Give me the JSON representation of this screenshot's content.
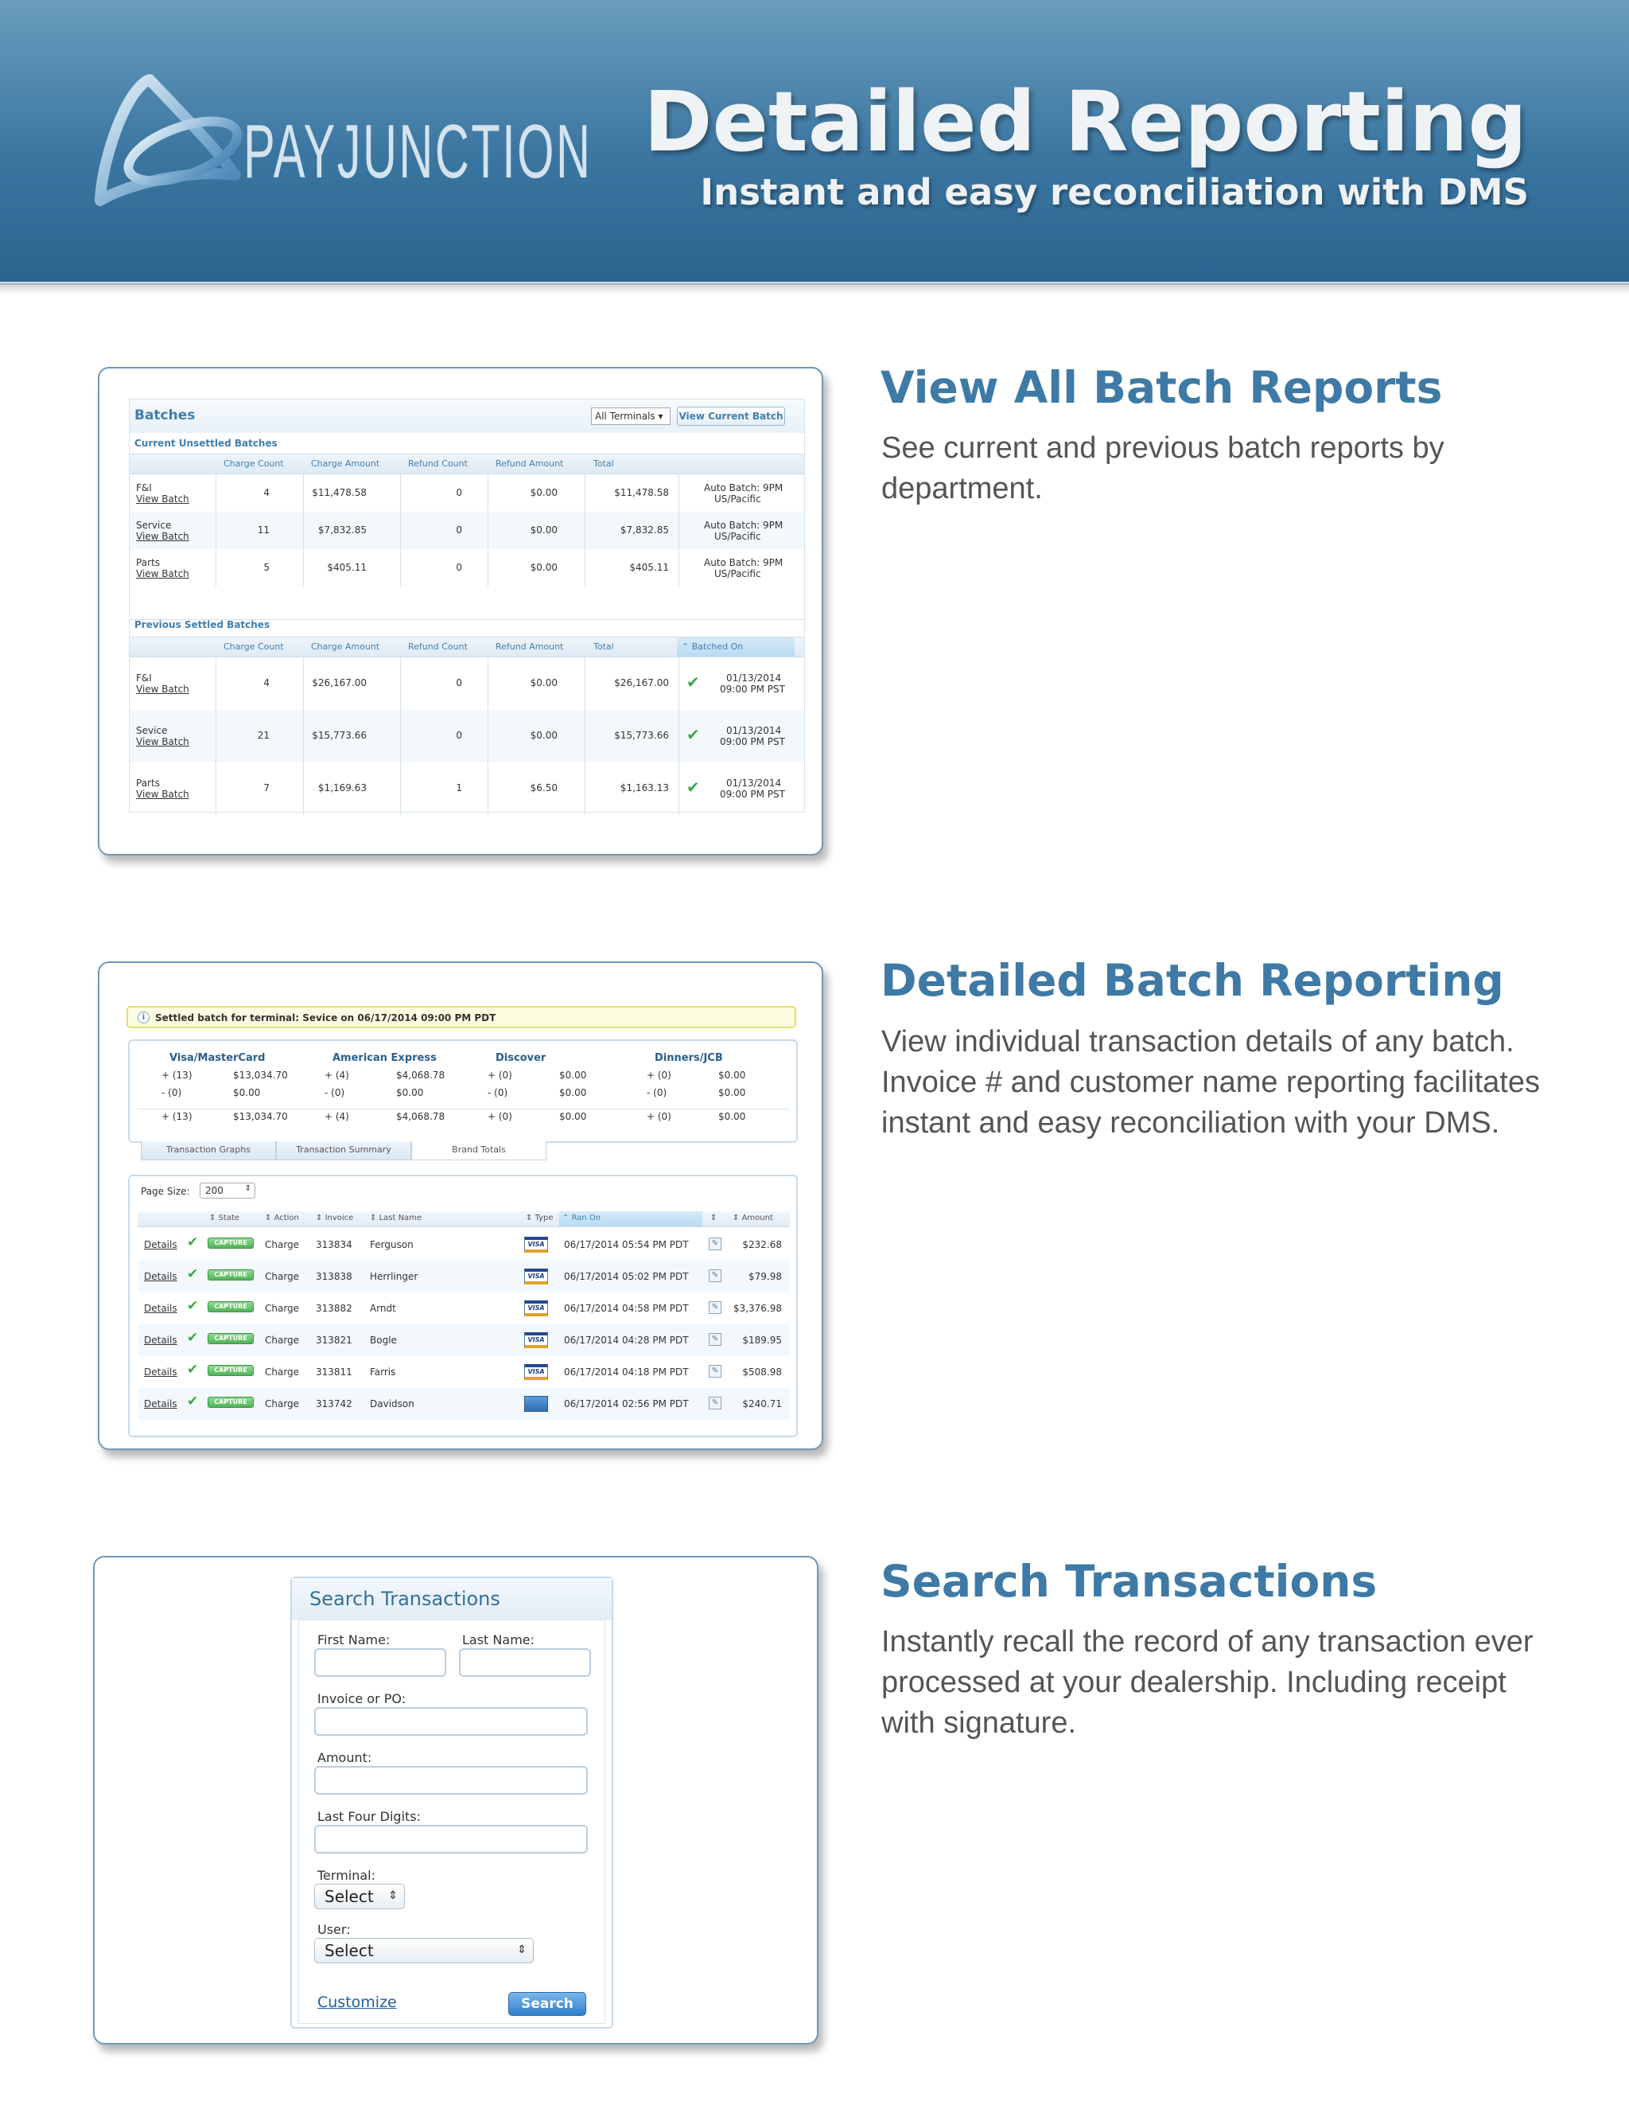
{
  "header": {
    "brand": "PAYJUNCTION",
    "title": "Detailed Reporting",
    "subtitle": "Instant and easy reconciliation with DMS",
    "bg_color": "#3b76a1"
  },
  "sections": [
    {
      "title": "View All Batch Reports",
      "desc": "See current and previous batch reports by department."
    },
    {
      "title": "Detailed Batch Reporting",
      "desc": "View individual transaction details of any batch. Invoice # and customer name reporting facilitates instant and easy reconciliation with your DMS."
    },
    {
      "title": "Search Transactions",
      "desc": "Instantly recall the record of any transaction ever processed at your dealership. Including receipt with signature."
    }
  ],
  "batches": {
    "title": "Batches",
    "terminal_select": "All Terminals",
    "view_current": "View Current Batch",
    "current_title": "Current Unsettled Batches",
    "previous_title": "Previous Settled Batches",
    "columns": [
      "Charge Count",
      "Charge Amount",
      "Refund Count",
      "Refund Amount",
      "Total"
    ],
    "batched_on": "Batched On",
    "view_batch": "View Batch",
    "current": [
      {
        "name": "F&I",
        "charge_count": "4",
        "charge_amount": "$11,478.58",
        "refund_count": "0",
        "refund_amount": "$0.00",
        "total": "$11,478.58",
        "auto1": "Auto Batch: 9PM",
        "auto2": "US/Pacific"
      },
      {
        "name": "Service",
        "charge_count": "11",
        "charge_amount": "$7,832.85",
        "refund_count": "0",
        "refund_amount": "$0.00",
        "total": "$7,832.85",
        "auto1": "Auto Batch: 9PM",
        "auto2": "US/Pacific"
      },
      {
        "name": "Parts",
        "charge_count": "5",
        "charge_amount": "$405.11",
        "refund_count": "0",
        "refund_amount": "$0.00",
        "total": "$405.11",
        "auto1": "Auto Batch: 9PM",
        "auto2": "US/Pacific"
      }
    ],
    "previous": [
      {
        "name": "F&I",
        "charge_count": "4",
        "charge_amount": "$26,167.00",
        "refund_count": "0",
        "refund_amount": "$0.00",
        "total": "$26,167.00",
        "date": "01/13/2014",
        "time": "09:00 PM PST"
      },
      {
        "name": "Sevice",
        "charge_count": "21",
        "charge_amount": "$15,773.66",
        "refund_count": "0",
        "refund_amount": "$0.00",
        "total": "$15,773.66",
        "date": "01/13/2014",
        "time": "09:00 PM PST"
      },
      {
        "name": "Parts",
        "charge_count": "7",
        "charge_amount": "$1,169.63",
        "refund_count": "1",
        "refund_amount": "$6.50",
        "total": "$1,163.13",
        "date": "01/13/2014",
        "time": "09:00 PM PST"
      }
    ]
  },
  "detail": {
    "banner": "Settled batch for terminal: Sevice on 06/17/2014 09:00 PM PDT",
    "brands": [
      {
        "name": "Visa/MasterCard",
        "r1c": "+ (13)",
        "r1v": "$13,034.70",
        "r2c": "- (0)",
        "r2v": "$0.00",
        "r3c": "+ (13)",
        "r3v": "$13,034.70"
      },
      {
        "name": "American Express",
        "r1c": "+ (4)",
        "r1v": "$4,068.78",
        "r2c": "- (0)",
        "r2v": "$0.00",
        "r3c": "+ (4)",
        "r3v": "$4,068.78"
      },
      {
        "name": "Discover",
        "r1c": "+ (0)",
        "r1v": "$0.00",
        "r2c": "- (0)",
        "r2v": "$0.00",
        "r3c": "+ (0)",
        "r3v": "$0.00"
      },
      {
        "name": "Dinners/JCB",
        "r1c": "+ (0)",
        "r1v": "$0.00",
        "r2c": "- (0)",
        "r2v": "$0.00",
        "r3c": "+ (0)",
        "r3v": "$0.00"
      }
    ],
    "tabs": [
      "Transaction Graphs",
      "Transaction Summary",
      "Brand Totals"
    ],
    "page_size_label": "Page Size:",
    "page_size": "200",
    "columns": {
      "state": "State",
      "action": "Action",
      "invoice": "Invoice",
      "last_name": "Last Name",
      "type": "Type",
      "ran_on": "Ran On",
      "amount": "Amount"
    },
    "details_link": "Details",
    "capture": "CAPTURE",
    "rows": [
      {
        "action": "Charge",
        "invoice": "313834",
        "last": "Ferguson",
        "card": "visa",
        "ran": "06/17/2014 05:54 PM PDT",
        "amount": "$232.68"
      },
      {
        "action": "Charge",
        "invoice": "313838",
        "last": "Herrlinger",
        "card": "visa",
        "ran": "06/17/2014 05:02 PM PDT",
        "amount": "$79.98"
      },
      {
        "action": "Charge",
        "invoice": "313882",
        "last": "Arndt",
        "card": "visa",
        "ran": "06/17/2014 04:58 PM PDT",
        "amount": "$3,376.98"
      },
      {
        "action": "Charge",
        "invoice": "313821",
        "last": "Bogle",
        "card": "visa",
        "ran": "06/17/2014 04:28 PM PDT",
        "amount": "$189.95"
      },
      {
        "action": "Charge",
        "invoice": "313811",
        "last": "Farris",
        "card": "visa",
        "ran": "06/17/2014 04:18 PM PDT",
        "amount": "$508.98"
      },
      {
        "action": "Charge",
        "invoice": "313742",
        "last": "Davidson",
        "card": "amex",
        "ran": "06/17/2014 02:56 PM PDT",
        "amount": "$240.71"
      }
    ]
  },
  "search": {
    "title": "Search Transactions",
    "first_name": "First Name:",
    "last_name": "Last Name:",
    "invoice": "Invoice or PO:",
    "amount": "Amount:",
    "last_four": "Last Four Digits:",
    "terminal": "Terminal:",
    "terminal_value": "Select",
    "user": "User:",
    "user_value": "Select",
    "customize": "Customize",
    "search_btn": "Search"
  }
}
